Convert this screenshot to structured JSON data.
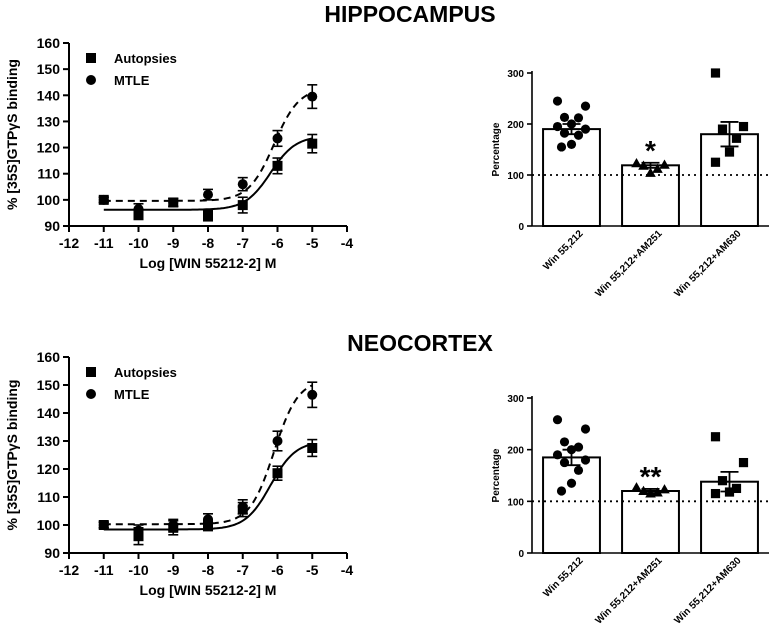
{
  "colors": {
    "ink": "#000000",
    "background": "#ffffff"
  },
  "chart_data": [
    {
      "id": "hippocampus-dose-response",
      "type": "scatter",
      "title": "HIPPOCAMPUS",
      "xlabel": "Log [WIN 55212-2] M",
      "ylabel": "% [35S]GTPγS binding",
      "xlim": [
        -12,
        -4
      ],
      "ylim": [
        90,
        160
      ],
      "xticks": [
        "-12",
        "-11",
        "-10",
        "-9",
        "-8",
        "-7",
        "-6",
        "-5",
        "-4"
      ],
      "yticks": [
        "90",
        "100",
        "110",
        "120",
        "130",
        "140",
        "150",
        "160"
      ],
      "legend_position": "top-left",
      "series": [
        {
          "name": "Autopsies",
          "marker": "square",
          "line": "solid",
          "x": [
            -11,
            -10,
            -9,
            -8,
            -7,
            -6,
            -5
          ],
          "y": [
            100,
            94.5,
            99,
            94,
            98,
            113,
            121.5
          ],
          "err": [
            1,
            2,
            1.5,
            2,
            3,
            3,
            3.5
          ],
          "fit": {
            "bottom": 96.2,
            "top": 124.5,
            "logEC50": -6.2,
            "hill": 1.2
          }
        },
        {
          "name": "MTLE",
          "marker": "circle",
          "line": "dashed",
          "x": [
            -11,
            -10,
            -9,
            -8,
            -7,
            -6,
            -5
          ],
          "y": [
            100,
            96.5,
            99,
            102,
            106,
            123.5,
            139.5
          ],
          "err": [
            1,
            2,
            1.5,
            2,
            2.5,
            3,
            4.5
          ],
          "fit": {
            "bottom": 99.6,
            "top": 143,
            "logEC50": -6.1,
            "hill": 1.2
          }
        }
      ]
    },
    {
      "id": "hippocampus-bars",
      "type": "bar",
      "ylabel": "Percentage",
      "ylim": [
        0,
        300
      ],
      "yticks": [
        "0",
        "100",
        "200",
        "300"
      ],
      "reference_line": 100,
      "categories": [
        "Win 55,212",
        "Win 55,212+AM251",
        "Win 55,212+AM630"
      ],
      "values": [
        190,
        119,
        180
      ],
      "sem": [
        10,
        5,
        24
      ],
      "significance": [
        "",
        "*",
        ""
      ],
      "points": [
        [
          245,
          235,
          213,
          212,
          200,
          195,
          190,
          182,
          178,
          160,
          155
        ],
        [
          123,
          120,
          118,
          112,
          104
        ],
        [
          300,
          195,
          190,
          172,
          145,
          125
        ]
      ],
      "point_markers": [
        "circle",
        "triangle",
        "square"
      ]
    },
    {
      "id": "neocortex-dose-response",
      "type": "scatter",
      "title": "NEOCORTEX",
      "xlabel": "Log [WIN 55212-2] M",
      "ylabel": "% [35S]GTPγS binding",
      "xlim": [
        -12,
        -4
      ],
      "ylim": [
        90,
        160
      ],
      "xticks": [
        "-12",
        "-11",
        "-10",
        "-9",
        "-8",
        "-7",
        "-6",
        "-5",
        "-4"
      ],
      "yticks": [
        "90",
        "100",
        "110",
        "120",
        "130",
        "140",
        "150",
        "160"
      ],
      "legend_position": "top-left",
      "series": [
        {
          "name": "Autopsies",
          "marker": "square",
          "line": "solid",
          "x": [
            -11,
            -10,
            -9,
            -8,
            -7,
            -6,
            -5
          ],
          "y": [
            100,
            96,
            99,
            100,
            105.5,
            118.5,
            127.5
          ],
          "err": [
            1,
            3,
            2.5,
            2,
            2.5,
            2.5,
            3
          ],
          "fit": {
            "bottom": 98.4,
            "top": 130,
            "logEC50": -6.2,
            "hill": 1.2
          }
        },
        {
          "name": "MTLE",
          "marker": "circle",
          "line": "dashed",
          "x": [
            -11,
            -10,
            -9,
            -8,
            -7,
            -6,
            -5
          ],
          "y": [
            100,
            98,
            100,
            102,
            106.5,
            130,
            146.5
          ],
          "err": [
            1,
            2,
            2,
            2,
            2.5,
            3.5,
            4.5
          ],
          "fit": {
            "bottom": 100.3,
            "top": 152,
            "logEC50": -6.1,
            "hill": 1.25
          }
        }
      ]
    },
    {
      "id": "neocortex-bars",
      "type": "bar",
      "ylabel": "Percentage",
      "ylim": [
        0,
        300
      ],
      "yticks": [
        "0",
        "100",
        "200",
        "300"
      ],
      "reference_line": 100,
      "categories": [
        "Win 55,212",
        "Win 55,212+AM251",
        "Win 55,212+AM630"
      ],
      "values": [
        185,
        120,
        138
      ],
      "sem": [
        15,
        4,
        19
      ],
      "significance": [
        "",
        "**",
        ""
      ],
      "points": [
        [
          258,
          240,
          215,
          205,
          200,
          190,
          180,
          175,
          160,
          135,
          120
        ],
        [
          127,
          123,
          120,
          117,
          115
        ],
        [
          225,
          175,
          140,
          125,
          118,
          115
        ]
      ],
      "point_markers": [
        "circle",
        "triangle",
        "square"
      ]
    }
  ]
}
